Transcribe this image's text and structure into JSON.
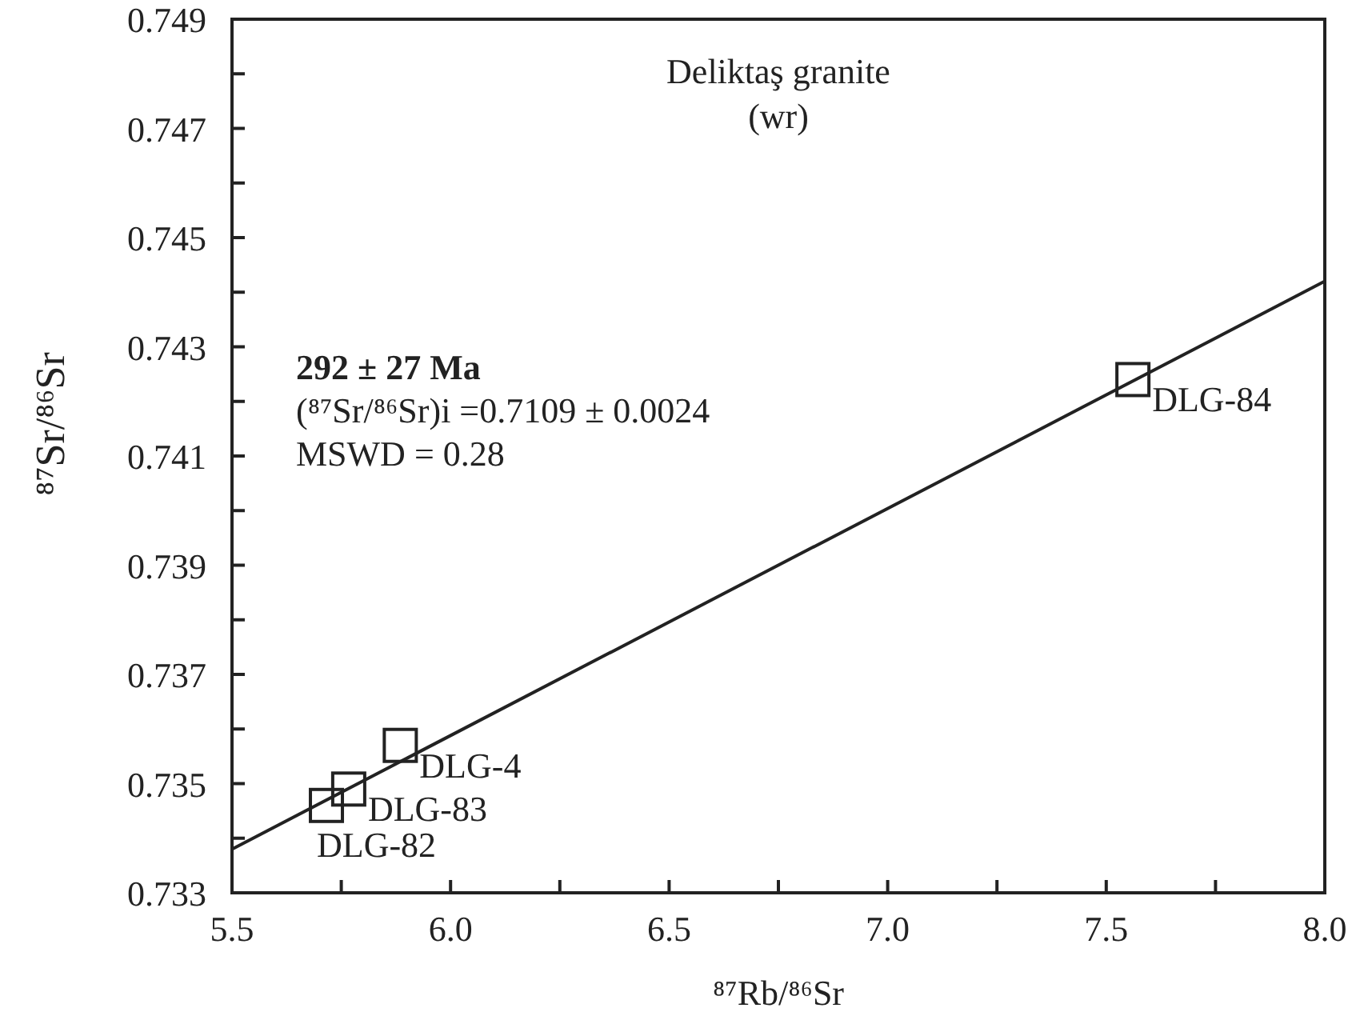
{
  "chart_data": {
    "type": "scatter",
    "title": "Deliktaş granite",
    "subtitle": "(wr)",
    "xlabel": "⁸⁷Rb/⁸⁶Sr",
    "ylabel": "⁸⁷Sr/⁸⁶Sr",
    "xlim": [
      5.5,
      8.0
    ],
    "ylim": [
      0.733,
      0.749
    ],
    "xticks": [
      5.5,
      {
        "value": 5.75,
        "label": null
      },
      {
        "value": 6,
        "label": "6.0"
      },
      {
        "value": 6.25,
        "label": null
      },
      6.5,
      {
        "value": 6.75,
        "label": null
      },
      {
        "value": 7,
        "label": "7.0"
      },
      {
        "value": 7.25,
        "label": null
      },
      7.5,
      {
        "value": 7.75,
        "label": null
      },
      {
        "value": 8,
        "label": "8.0"
      }
    ],
    "yticks": [
      0.733,
      {
        "value": 0.734,
        "label": null
      },
      0.735,
      {
        "value": 0.736,
        "label": null
      },
      0.737,
      {
        "value": 0.738,
        "label": null
      },
      0.739,
      {
        "value": 0.74,
        "label": null
      },
      0.741,
      {
        "value": 0.742,
        "label": null
      },
      0.743,
      {
        "value": 0.744,
        "label": null
      },
      0.745,
      {
        "value": 0.746,
        "label": null
      },
      0.747,
      {
        "value": 0.748,
        "label": null
      },
      0.749
    ],
    "grid": false,
    "marker": "square",
    "series": [
      {
        "color": "#222222",
        "x": [
          5.716,
          5.767,
          5.885,
          7.561
        ],
        "values": [
          0.7346,
          0.7349,
          0.7357,
          0.7424
        ]
      },
      {
        "type": "line",
        "color": "#222222",
        "x": [
          5.5,
          8.0
        ],
        "values": [
          0.7338,
          0.7442
        ],
        "marker": "none",
        "line_style": "solid"
      }
    ],
    "annotations": [
      "292 ± 27 Ma",
      "(⁸⁷Sr/⁸⁶Sr)i =0.7109 ± 0.0024",
      "MSWD = 0.28",
      {
        "text": "DLG-82",
        "x": 5.716,
        "y": 0.7346
      },
      {
        "text": "DLG-83",
        "x": 5.767,
        "y": 0.7349
      },
      {
        "text": "DLG-4",
        "x": 5.885,
        "y": 0.7357
      },
      {
        "text": "DLG-84",
        "x": 7.561,
        "y": 0.7424
      }
    ]
  }
}
